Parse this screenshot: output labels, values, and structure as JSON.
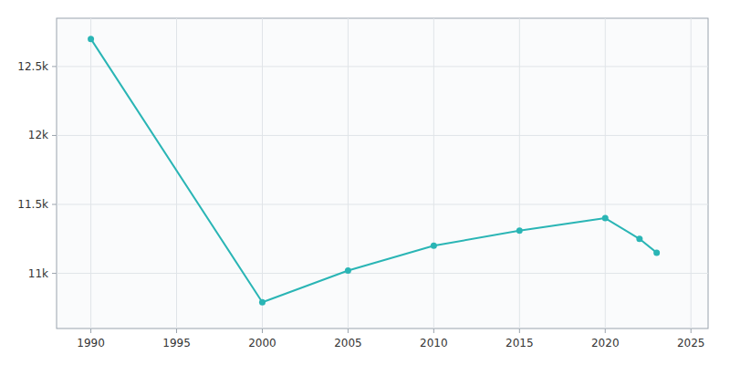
{
  "chart_data": {
    "type": "line",
    "x": [
      1990,
      2000,
      2005,
      2010,
      2015,
      2020,
      2022,
      2023
    ],
    "values": [
      12700,
      10790,
      11020,
      11200,
      11310,
      11400,
      11250,
      11150
    ],
    "color": "#2ab5b5",
    "marker": "circle",
    "xlim": [
      1988,
      2026
    ],
    "ylim": [
      10600,
      12850
    ],
    "xticks": [
      1990,
      1995,
      2000,
      2005,
      2010,
      2015,
      2020,
      2025
    ],
    "yticks": [
      {
        "value": 11000,
        "label": "11k"
      },
      {
        "value": 11500,
        "label": "11.5k"
      },
      {
        "value": 12000,
        "label": "12k"
      },
      {
        "value": 12500,
        "label": "12.5k"
      }
    ],
    "grid": true
  }
}
